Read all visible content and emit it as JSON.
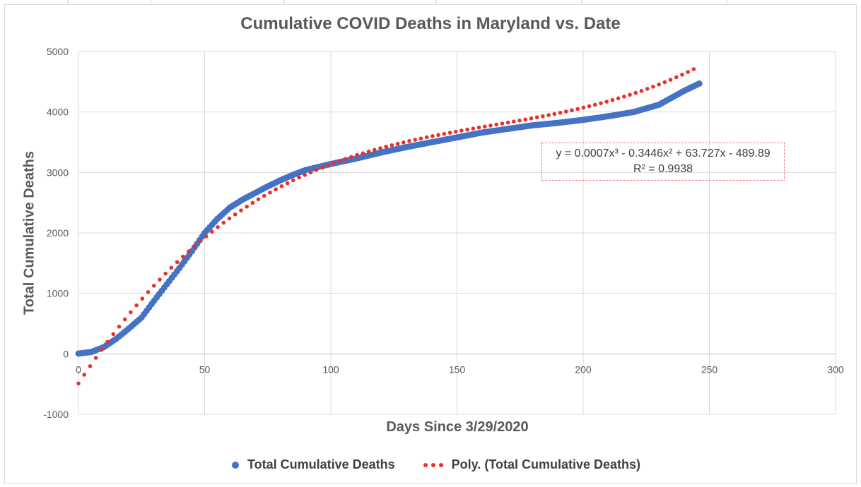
{
  "chart_data": {
    "type": "scatter",
    "title": "Cumulative COVID Deaths in Maryland vs. Date",
    "xlabel": "Days Since 3/29/2020",
    "ylabel": "Total Cumulative Deaths",
    "xlim": [
      0,
      300
    ],
    "ylim": [
      -1000,
      5000
    ],
    "x_ticks": [
      "0",
      "50",
      "100",
      "150",
      "200",
      "250",
      "300"
    ],
    "y_ticks": [
      "-1000",
      "0",
      "1000",
      "2000",
      "3000",
      "4000",
      "5000"
    ],
    "grid": true,
    "legend_position": "bottom",
    "series": [
      {
        "name": "Total Cumulative Deaths",
        "kind": "scatter",
        "color": "#4472c4",
        "points": [
          [
            0,
            5
          ],
          [
            5,
            30
          ],
          [
            10,
            110
          ],
          [
            15,
            250
          ],
          [
            20,
            420
          ],
          [
            25,
            600
          ],
          [
            30,
            880
          ],
          [
            35,
            1150
          ],
          [
            40,
            1420
          ],
          [
            45,
            1700
          ],
          [
            50,
            2000
          ],
          [
            55,
            2230
          ],
          [
            60,
            2420
          ],
          [
            65,
            2550
          ],
          [
            70,
            2660
          ],
          [
            75,
            2770
          ],
          [
            80,
            2870
          ],
          [
            85,
            2960
          ],
          [
            90,
            3040
          ],
          [
            95,
            3090
          ],
          [
            100,
            3140
          ],
          [
            110,
            3230
          ],
          [
            120,
            3330
          ],
          [
            130,
            3420
          ],
          [
            140,
            3500
          ],
          [
            150,
            3580
          ],
          [
            160,
            3660
          ],
          [
            170,
            3720
          ],
          [
            180,
            3780
          ],
          [
            190,
            3820
          ],
          [
            200,
            3870
          ],
          [
            210,
            3930
          ],
          [
            220,
            4000
          ],
          [
            230,
            4120
          ],
          [
            240,
            4350
          ],
          [
            246,
            4470
          ]
        ]
      },
      {
        "name": "Poly. (Total Cumulative Deaths)",
        "kind": "trendline",
        "color": "#e8312a",
        "coefficients": [
          0.0007,
          -0.3446,
          63.727,
          -489.89
        ],
        "x_range": [
          0,
          246
        ]
      }
    ],
    "annotation": {
      "equation": "y = 0.0007x³ - 0.3446x² + 63.727x - 489.89",
      "r_squared": "R² = 0.9938"
    }
  }
}
